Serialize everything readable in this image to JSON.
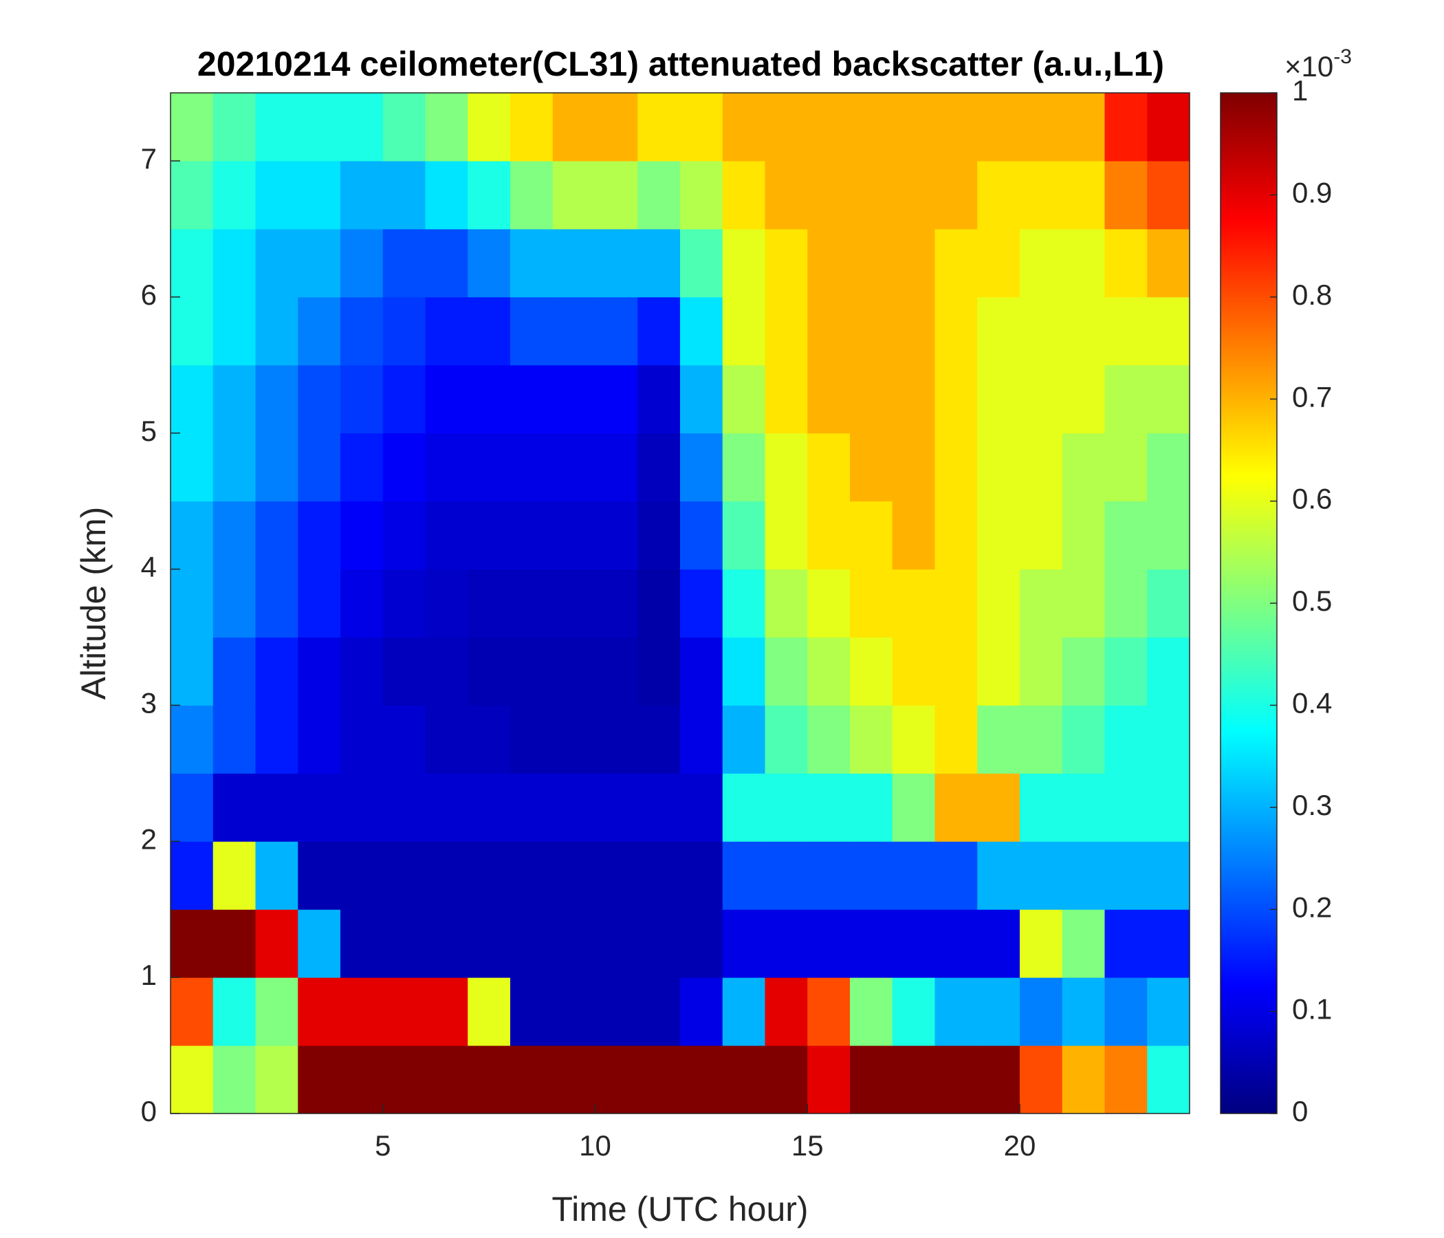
{
  "chart_data": {
    "type": "heatmap",
    "title": "20210214 ceilometer(CL31) attenuated backscatter (a.u.,L1)",
    "x_label": "Time (UTC hour)",
    "y_label": "Altitude (km)",
    "colormap": "jet",
    "colorbar_exponent_base": "×10",
    "colorbar_exponent": "-3",
    "xlim": [
      0,
      24
    ],
    "xticks": [
      5,
      10,
      15,
      20
    ],
    "ylim": [
      0,
      7.5
    ],
    "yticks": [
      0,
      1,
      2,
      3,
      4,
      5,
      6,
      7
    ],
    "clim": [
      0,
      1
    ],
    "cticks": [
      0,
      0.1,
      0.2,
      0.3,
      0.4,
      0.5,
      0.6,
      0.7,
      0.8,
      0.9,
      1
    ],
    "x": [
      0.5,
      1.5,
      2.5,
      3.5,
      4.5,
      5.5,
      6.5,
      7.5,
      8.5,
      9.5,
      10.5,
      11.5,
      12.5,
      13.5,
      14.5,
      15.5,
      16.5,
      17.5,
      18.5,
      19.5,
      20.5,
      21.5,
      22.5,
      23.5
    ],
    "y": [
      0.25,
      0.75,
      1.25,
      1.75,
      2.25,
      2.75,
      3.25,
      3.75,
      4.25,
      4.75,
      5.25,
      5.75,
      6.25,
      6.75,
      7.25
    ],
    "values": [
      [
        0.6,
        0.5,
        0.55,
        1,
        1,
        1,
        1,
        1,
        1,
        1,
        1,
        1,
        1,
        1,
        1,
        0.9,
        1,
        1,
        1,
        1,
        0.8,
        0.7,
        0.75,
        0.4
      ],
      [
        0.8,
        0.4,
        0.5,
        0.9,
        0.9,
        0.9,
        0.9,
        0.6,
        0.05,
        0.05,
        0.05,
        0.05,
        0.1,
        0.3,
        0.9,
        0.8,
        0.5,
        0.4,
        0.3,
        0.3,
        0.25,
        0.3,
        0.25,
        0.3
      ],
      [
        1,
        1,
        0.9,
        0.3,
        0.05,
        0.05,
        0.05,
        0.05,
        0.05,
        0.05,
        0.05,
        0.05,
        0.05,
        0.1,
        0.1,
        0.1,
        0.1,
        0.1,
        0.1,
        0.1,
        0.6,
        0.5,
        0.15,
        0.15
      ],
      [
        0.15,
        0.6,
        0.3,
        0.05,
        0.05,
        0.05,
        0.05,
        0.05,
        0.05,
        0.05,
        0.05,
        0.05,
        0.05,
        0.2,
        0.2,
        0.2,
        0.2,
        0.2,
        0.2,
        0.3,
        0.3,
        0.3,
        0.3,
        0.3
      ],
      [
        0.2,
        0.08,
        0.08,
        0.08,
        0.08,
        0.08,
        0.08,
        0.08,
        0.08,
        0.08,
        0.08,
        0.08,
        0.08,
        0.4,
        0.4,
        0.4,
        0.4,
        0.5,
        0.7,
        0.7,
        0.4,
        0.4,
        0.4,
        0.4
      ],
      [
        0.25,
        0.2,
        0.15,
        0.1,
        0.08,
        0.08,
        0.06,
        0.06,
        0.05,
        0.05,
        0.05,
        0.05,
        0.1,
        0.3,
        0.45,
        0.5,
        0.55,
        0.6,
        0.65,
        0.5,
        0.5,
        0.45,
        0.4,
        0.4
      ],
      [
        0.3,
        0.2,
        0.15,
        0.1,
        0.08,
        0.06,
        0.06,
        0.05,
        0.05,
        0.05,
        0.05,
        0.04,
        0.1,
        0.35,
        0.5,
        0.55,
        0.6,
        0.65,
        0.65,
        0.6,
        0.55,
        0.5,
        0.45,
        0.4
      ],
      [
        0.3,
        0.25,
        0.2,
        0.15,
        0.1,
        0.08,
        0.07,
        0.06,
        0.06,
        0.06,
        0.06,
        0.04,
        0.15,
        0.4,
        0.55,
        0.6,
        0.65,
        0.65,
        0.65,
        0.6,
        0.55,
        0.55,
        0.5,
        0.45
      ],
      [
        0.3,
        0.25,
        0.2,
        0.15,
        0.12,
        0.1,
        0.08,
        0.08,
        0.08,
        0.08,
        0.08,
        0.05,
        0.2,
        0.45,
        0.6,
        0.65,
        0.65,
        0.7,
        0.65,
        0.6,
        0.6,
        0.55,
        0.5,
        0.5
      ],
      [
        0.35,
        0.3,
        0.25,
        0.2,
        0.15,
        0.12,
        0.1,
        0.1,
        0.1,
        0.1,
        0.1,
        0.06,
        0.25,
        0.5,
        0.6,
        0.65,
        0.7,
        0.7,
        0.65,
        0.6,
        0.6,
        0.55,
        0.55,
        0.5
      ],
      [
        0.35,
        0.3,
        0.25,
        0.2,
        0.18,
        0.15,
        0.12,
        0.12,
        0.12,
        0.12,
        0.12,
        0.08,
        0.3,
        0.55,
        0.65,
        0.7,
        0.7,
        0.7,
        0.65,
        0.6,
        0.6,
        0.6,
        0.55,
        0.55
      ],
      [
        0.4,
        0.35,
        0.3,
        0.25,
        0.2,
        0.18,
        0.15,
        0.15,
        0.2,
        0.2,
        0.2,
        0.15,
        0.35,
        0.6,
        0.65,
        0.7,
        0.7,
        0.7,
        0.65,
        0.6,
        0.6,
        0.6,
        0.6,
        0.6
      ],
      [
        0.4,
        0.35,
        0.3,
        0.3,
        0.25,
        0.2,
        0.2,
        0.25,
        0.3,
        0.3,
        0.3,
        0.3,
        0.45,
        0.6,
        0.65,
        0.7,
        0.7,
        0.7,
        0.65,
        0.65,
        0.6,
        0.6,
        0.65,
        0.7
      ],
      [
        0.45,
        0.4,
        0.35,
        0.35,
        0.3,
        0.3,
        0.35,
        0.4,
        0.5,
        0.55,
        0.55,
        0.5,
        0.55,
        0.65,
        0.7,
        0.7,
        0.7,
        0.7,
        0.7,
        0.65,
        0.65,
        0.65,
        0.75,
        0.8
      ],
      [
        0.5,
        0.45,
        0.4,
        0.4,
        0.4,
        0.45,
        0.5,
        0.6,
        0.65,
        0.7,
        0.7,
        0.65,
        0.65,
        0.7,
        0.7,
        0.7,
        0.7,
        0.7,
        0.7,
        0.7,
        0.7,
        0.7,
        0.85,
        0.9
      ]
    ]
  }
}
